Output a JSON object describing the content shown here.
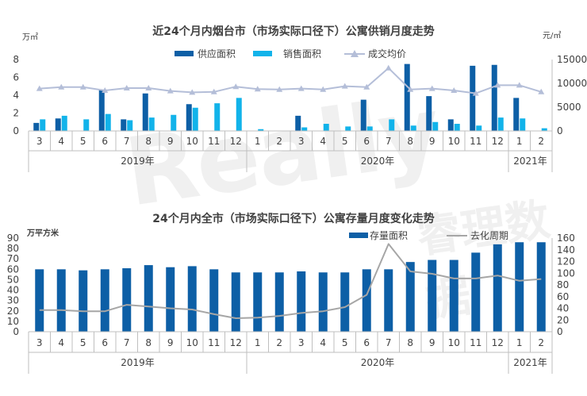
{
  "chart_data": [
    {
      "type": "bar",
      "title": "近24个月内烟台市（市场实际口径下）公寓供销月度走势",
      "ylabel": "万㎡",
      "y2label": "元/㎡",
      "ylim": [
        0,
        8
      ],
      "yticks": [
        0,
        2,
        4,
        6,
        8
      ],
      "y2lim": [
        0,
        15000
      ],
      "y2ticks": [
        0,
        5000,
        10000,
        15000
      ],
      "grid": false,
      "legend_position": "top",
      "categories": [
        "3",
        "4",
        "5",
        "6",
        "7",
        "8",
        "9",
        "10",
        "11",
        "12",
        "1",
        "2",
        "3",
        "4",
        "5",
        "6",
        "7",
        "8",
        "9",
        "10",
        "11",
        "12",
        "1",
        "2"
      ],
      "years": [
        {
          "label": "2019年",
          "start": 0,
          "end": 9
        },
        {
          "label": "2020年",
          "start": 10,
          "end": 21
        },
        {
          "label": "2021年",
          "start": 22,
          "end": 23
        }
      ],
      "series": [
        {
          "name": "供应面积",
          "kind": "bar",
          "axis": "left",
          "color": "#0d5fa6",
          "values": [
            0.9,
            1.4,
            0,
            4.6,
            1.3,
            4.2,
            0,
            3.0,
            0,
            0,
            0,
            0,
            1.7,
            0,
            0,
            3.5,
            0,
            7.5,
            3.9,
            1.3,
            7.3,
            7.4,
            3.7,
            0
          ]
        },
        {
          "name": "销售面积",
          "kind": "bar",
          "axis": "left",
          "color": "#12b3ea",
          "values": [
            1.3,
            1.7,
            1.3,
            1.9,
            1.2,
            1.5,
            1.8,
            2.6,
            3.1,
            3.7,
            0.2,
            0,
            0.4,
            0.8,
            0.5,
            0.5,
            1.3,
            0.6,
            1.0,
            0.8,
            0.6,
            1.5,
            1.4,
            0.3
          ]
        },
        {
          "name": "成交均价",
          "kind": "line",
          "axis": "right",
          "color": "#b4bed8",
          "values": [
            8900,
            9200,
            9200,
            8500,
            9000,
            9000,
            8400,
            8100,
            8200,
            9300,
            8800,
            8700,
            8900,
            8700,
            9400,
            9200,
            13200,
            8700,
            8900,
            8500,
            7900,
            9600,
            9600,
            8200
          ]
        }
      ]
    },
    {
      "type": "bar",
      "title": "24个月内全市（市场实际口径下）公寓存量月度变化走势",
      "ylabel": "万平方米",
      "ylim": [
        0,
        90
      ],
      "yticks": [
        0,
        10,
        20,
        30,
        40,
        50,
        60,
        70,
        80,
        90
      ],
      "y2lim": [
        0,
        160
      ],
      "y2ticks": [
        0,
        20,
        40,
        60,
        80,
        100,
        120,
        140,
        160
      ],
      "grid": false,
      "legend_position": "top-right",
      "categories": [
        "3",
        "4",
        "5",
        "6",
        "7",
        "8",
        "9",
        "10",
        "11",
        "12",
        "1",
        "2",
        "3",
        "4",
        "5",
        "6",
        "7",
        "8",
        "9",
        "10",
        "11",
        "12",
        "1",
        "2"
      ],
      "years": [
        {
          "label": "2019年",
          "start": 0,
          "end": 9
        },
        {
          "label": "2020年",
          "start": 10,
          "end": 21
        },
        {
          "label": "2021年",
          "start": 22,
          "end": 23
        }
      ],
      "series": [
        {
          "name": "存量面积",
          "kind": "bar",
          "axis": "left",
          "color": "#0d5fa6",
          "values": [
            60,
            60,
            59,
            60,
            61,
            64,
            62,
            63,
            60,
            57,
            57,
            57,
            58,
            57,
            57,
            60,
            60,
            67,
            69,
            69,
            76,
            84,
            86,
            86
          ]
        },
        {
          "name": "去化周期",
          "kind": "line",
          "axis": "right",
          "color": "#a6a6a6",
          "values": [
            37,
            37,
            35,
            35,
            46,
            43,
            40,
            38,
            30,
            23,
            24,
            27,
            32,
            35,
            42,
            63,
            150,
            103,
            99,
            91,
            91,
            96,
            87,
            90
          ]
        }
      ]
    }
  ],
  "watermark": {
    "brand": "Really",
    "text": "睿理数据"
  }
}
